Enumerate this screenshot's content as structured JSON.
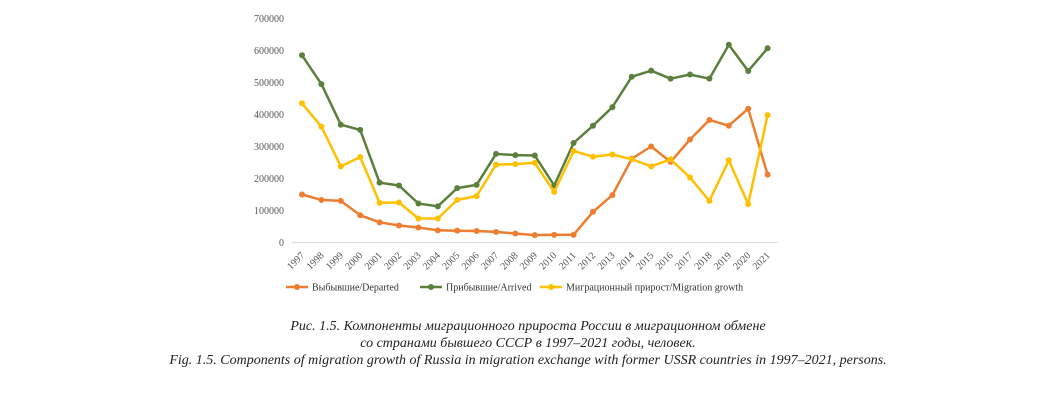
{
  "chart_data": {
    "type": "line",
    "categories": [
      "1997",
      "1998",
      "1999",
      "2000",
      "2001",
      "2002",
      "2003",
      "2004",
      "2005",
      "2006",
      "2007",
      "2008",
      "2009",
      "2010",
      "2011",
      "2012",
      "2013",
      "2014",
      "2015",
      "2016",
      "2017",
      "2018",
      "2019",
      "2020",
      "2021"
    ],
    "y_ticks": [
      "0",
      "100000",
      "200000",
      "300000",
      "400000",
      "500000",
      "600000",
      "700000"
    ],
    "ylim": [
      0,
      700000
    ],
    "grid": false,
    "legend_position": "bottom",
    "series": [
      {
        "name": "Выбывшие/Departed",
        "color": "#ed7d31",
        "values": [
          150000,
          133000,
          130000,
          85000,
          63000,
          53000,
          47000,
          38000,
          37000,
          36000,
          33000,
          28000,
          23000,
          24000,
          24000,
          96000,
          148000,
          262000,
          300000,
          252000,
          322000,
          383000,
          365000,
          418000,
          212000
        ]
      },
      {
        "name": "Прибывшие/Arrived",
        "color": "#5b7f3c",
        "values": [
          585000,
          495000,
          368000,
          352000,
          187000,
          178000,
          122000,
          113000,
          170000,
          180000,
          277000,
          273000,
          272000,
          178000,
          311000,
          365000,
          423000,
          518000,
          537000,
          512000,
          525000,
          512000,
          618000,
          536000,
          607000
        ]
      },
      {
        "name": "Миграционный прирост/Migration growth",
        "color": "#ffc000",
        "values": [
          435000,
          362000,
          238000,
          267000,
          124000,
          125000,
          75000,
          75000,
          133000,
          145000,
          243000,
          245000,
          249000,
          158000,
          286000,
          268000,
          275000,
          260000,
          238000,
          260000,
          203000,
          130000,
          257000,
          120000,
          398000
        ]
      }
    ]
  },
  "caption": {
    "line_ru_1": "Рис. 1.5. Компоненты миграционного прироста России в миграционном обмене",
    "line_ru_2": "со странами бывшего СССР в 1997–2021 годы, человек.",
    "line_en": "Fig. 1.5. Components of migration growth of Russia in migration exchange with former USSR countries in 1997–2021, persons."
  }
}
